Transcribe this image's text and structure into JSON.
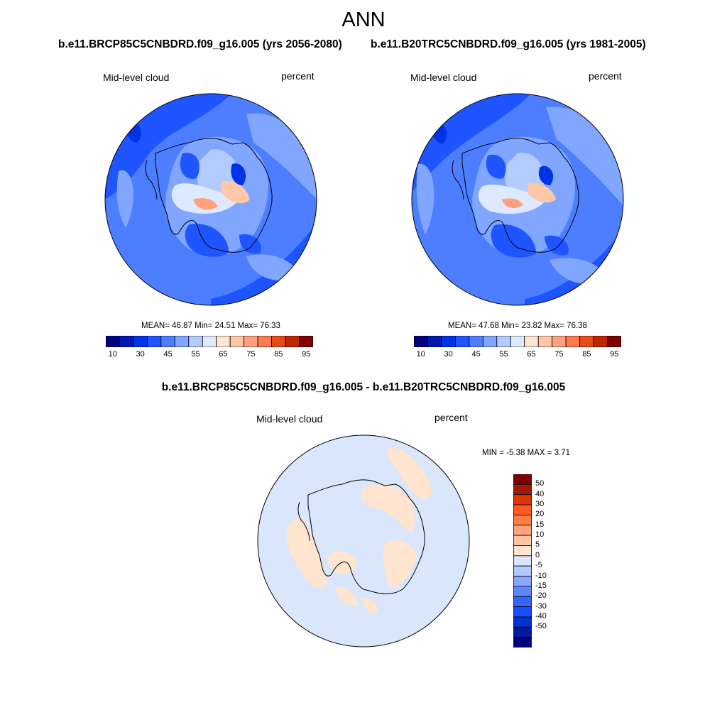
{
  "figure": {
    "title": "ANN",
    "colors": {
      "hbar": [
        "#00007f",
        "#0019b3",
        "#0033e6",
        "#1f55ff",
        "#4c7eff",
        "#80a6ff",
        "#b3ccff",
        "#dde9ff",
        "#ffe5d3",
        "#ffc6a7",
        "#ffa07f",
        "#ff7a4c",
        "#e64c19",
        "#c02400",
        "#7f0000"
      ],
      "diff_bar": [
        "#00007f",
        "#001a99",
        "#0033cc",
        "#1a4dff",
        "#3366ff",
        "#5e86ff",
        "#89a8ff",
        "#b3c8ff",
        "#d9e6fb",
        "#ffe4d0",
        "#ffc4a3",
        "#ffa47a",
        "#ff7d47",
        "#ff5a1f",
        "#e03500",
        "#a31800",
        "#7f0000"
      ],
      "coast": "#000000"
    }
  },
  "panels": [
    {
      "case_title": "b.e11.BRCP85C5CNBDRD.f09_g16.005 (yrs 2056-2080)",
      "left_label": "Mid-level cloud",
      "right_label": "percent",
      "stats": "MEAN=  46.87  Min=  24.51  Max=  76.33",
      "colorbar_ticks": [
        "10",
        "30",
        "45",
        "55",
        "65",
        "75",
        "85",
        "95"
      ]
    },
    {
      "case_title": "b.e11.B20TRC5CNBDRD.f09_g16.005 (yrs 1981-2005)",
      "left_label": "Mid-level cloud",
      "right_label": "percent",
      "stats": "MEAN=  47.68  Min=  23.82  Max=  76.38",
      "colorbar_ticks": [
        "10",
        "30",
        "45",
        "55",
        "65",
        "75",
        "85",
        "95"
      ]
    }
  ],
  "diff_panel": {
    "title": "b.e11.BRCP85C5CNBDRD.f09_g16.005 - b.e11.B20TRC5CNBDRD.f09_g16.005",
    "left_label": "Mid-level cloud",
    "right_label": "percent",
    "stats": "MIN =  -5.38 MAX =   3.71",
    "colorbar_ticks": [
      "50",
      "40",
      "30",
      "20",
      "15",
      "10",
      "5",
      "0",
      "-5",
      "-10",
      "-15",
      "-20",
      "-30",
      "-40",
      "-50"
    ]
  }
}
